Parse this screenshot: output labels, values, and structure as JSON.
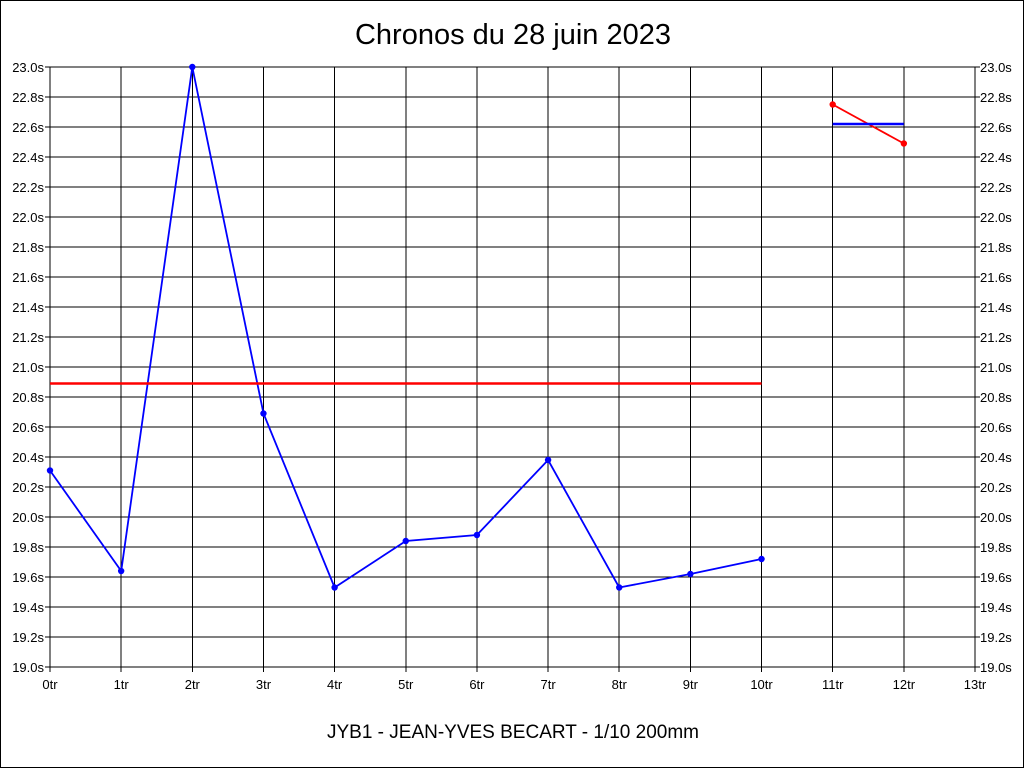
{
  "chart_data": {
    "type": "line",
    "title": "Chronos du 28 juin 2023",
    "footer": "JYB1 - JEAN-YVES BECART - 1/10 200mm",
    "x_ticks": [
      "0tr",
      "1tr",
      "2tr",
      "3tr",
      "4tr",
      "5tr",
      "6tr",
      "7tr",
      "8tr",
      "9tr",
      "10tr",
      "11tr",
      "12tr",
      "13tr"
    ],
    "y_ticks": [
      "19.0s",
      "19.2s",
      "19.4s",
      "19.6s",
      "19.8s",
      "20.0s",
      "20.2s",
      "20.4s",
      "20.6s",
      "20.8s",
      "21.0s",
      "21.2s",
      "21.4s",
      "21.6s",
      "21.8s",
      "22.0s",
      "22.2s",
      "22.4s",
      "22.6s",
      "22.8s",
      "23.0s"
    ],
    "xlim": [
      0,
      13
    ],
    "ylim": [
      19.0,
      23.0
    ],
    "grid": true,
    "series": [
      {
        "color": "#0000ff",
        "marker": true,
        "points": [
          [
            0,
            20.31
          ],
          [
            1,
            19.64
          ],
          [
            2,
            23.0
          ],
          [
            3,
            20.69
          ],
          [
            4,
            19.53
          ],
          [
            5,
            19.84
          ],
          [
            6,
            19.88
          ],
          [
            7,
            20.38
          ],
          [
            8,
            19.53
          ],
          [
            9,
            19.62
          ],
          [
            10,
            19.72
          ]
        ]
      },
      {
        "color": "#ff0000",
        "marker": false,
        "points": [
          [
            0,
            20.89
          ],
          [
            10,
            20.89
          ]
        ]
      },
      {
        "color": "#ff0000",
        "marker": true,
        "points": [
          [
            11,
            22.75
          ],
          [
            12,
            22.49
          ]
        ]
      },
      {
        "color": "#0000ff",
        "marker": false,
        "points": [
          [
            11,
            22.62
          ],
          [
            12,
            22.62
          ]
        ]
      }
    ]
  }
}
